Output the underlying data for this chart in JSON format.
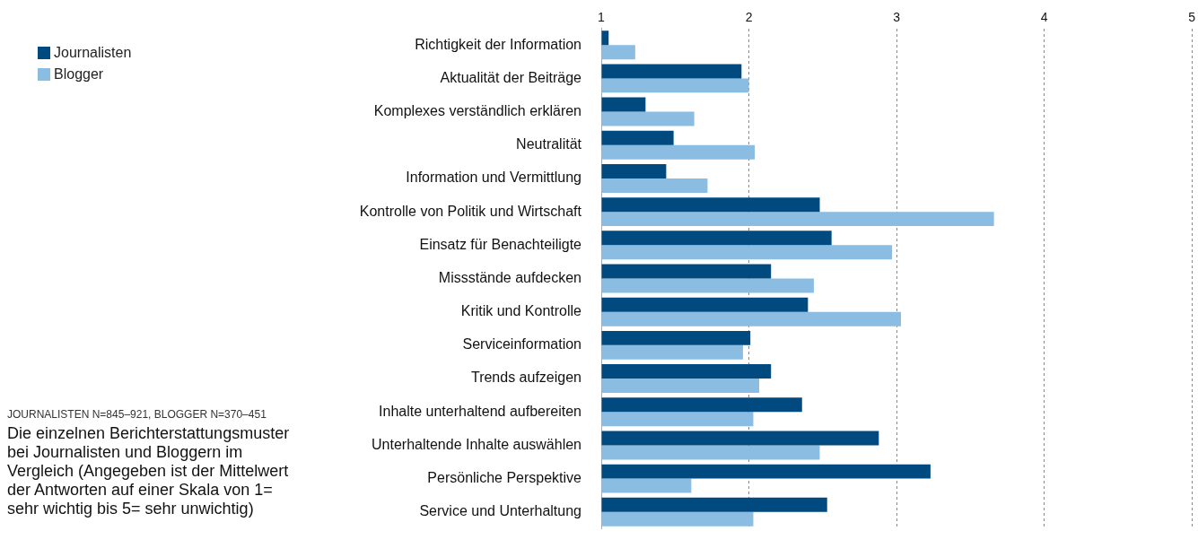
{
  "chart_data": {
    "type": "bar",
    "orientation": "horizontal",
    "title": "Die einzelnen Berichterstattungsmuster bei Journalisten und Bloggern im Vergleich (Angegeben ist der Mittelwert der Antworten auf einer Skala von 1= sehr wichtig bis 5= sehr unwichtig)",
    "subtitle": "JOURNALISTEN N=845–921, BLOGGER N=370–451",
    "categories": [
      "Richtigkeit der Information",
      "Aktualität der Beiträge",
      "Komplexes verständlich erklären",
      "Neutralität",
      "Information und Vermittlung",
      "Kontrolle von Politik und Wirtschaft",
      "Einsatz für Benachteiligte",
      "Missstände aufdecken",
      "Kritik und Kontrolle",
      "Serviceinformation",
      "Trends aufzeigen",
      "Inhalte unterhaltend aufbereiten",
      "Unterhaltende Inhalte auswählen",
      "Persönliche Perspektive",
      "Service und Unterhaltung"
    ],
    "series": [
      {
        "name": "Journalisten",
        "color": "#004a80",
        "values": [
          1.05,
          1.95,
          1.3,
          1.49,
          1.44,
          2.48,
          2.56,
          2.15,
          2.4,
          2.01,
          2.15,
          2.36,
          2.88,
          3.23,
          2.53
        ]
      },
      {
        "name": "Blogger",
        "color": "#8bbde3",
        "values": [
          1.23,
          2.0,
          1.63,
          2.04,
          1.72,
          3.66,
          2.97,
          2.44,
          3.03,
          1.96,
          2.07,
          2.03,
          2.48,
          1.61,
          2.03
        ]
      }
    ],
    "xlim": [
      1,
      5
    ],
    "xticks": [
      1,
      2,
      3,
      4,
      5
    ],
    "grid": "x",
    "legend": "top left"
  }
}
